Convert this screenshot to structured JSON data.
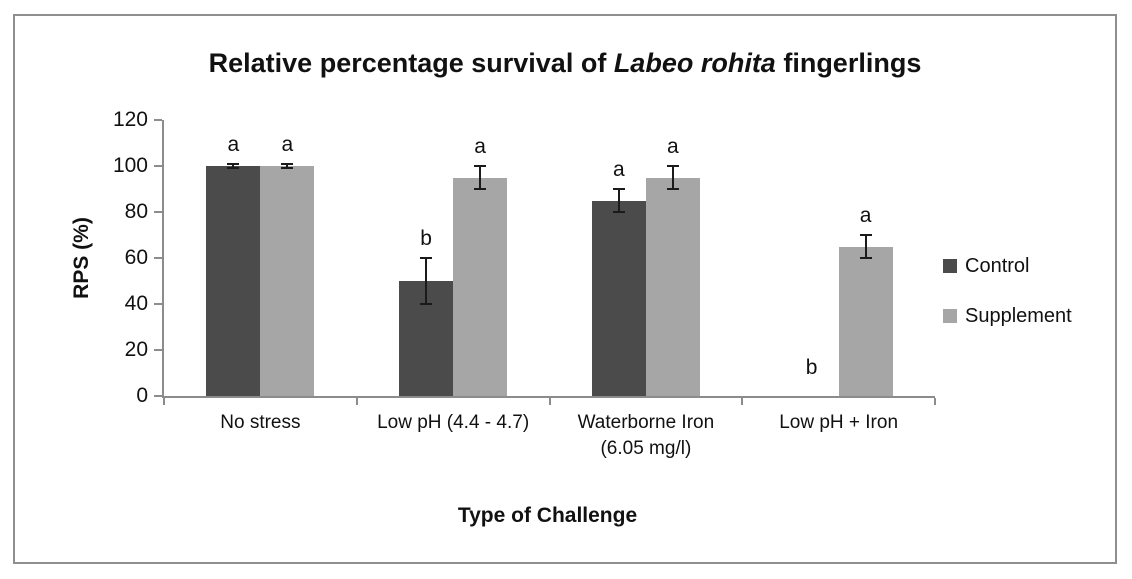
{
  "chart_data": {
    "type": "bar",
    "title": "Relative percentage survival of Labeo rohita fingerlings",
    "title_parts": {
      "prefix": "Relative percentage survival of ",
      "italic": "Labeo rohita",
      "suffix": " fingerlings"
    },
    "xlabel": "Type of Challenge",
    "ylabel": "RPS (%)",
    "ylim": [
      0,
      120
    ],
    "yticks": [
      0,
      20,
      40,
      60,
      80,
      100,
      120
    ],
    "grid": false,
    "legend_position": "right",
    "categories": [
      "No stress",
      "Low pH (4.4 - 4.7)",
      "Waterborne Iron (6.05 mg/l)",
      "Low pH + Iron"
    ],
    "series": [
      {
        "name": "Control",
        "color": "#4b4b4b",
        "values": [
          100,
          50,
          85,
          0
        ],
        "errors": [
          1,
          10,
          5,
          0
        ],
        "sig_letters": [
          "a",
          "b",
          "a",
          "b"
        ]
      },
      {
        "name": "Supplement",
        "color": "#a6a6a6",
        "values": [
          100,
          95,
          95,
          65
        ],
        "errors": [
          1,
          5,
          5,
          5
        ],
        "sig_letters": [
          "a",
          "a",
          "a",
          "a"
        ]
      }
    ],
    "axis_color": "#8c8c8c",
    "error_bar_color": "#1a1a1a"
  }
}
